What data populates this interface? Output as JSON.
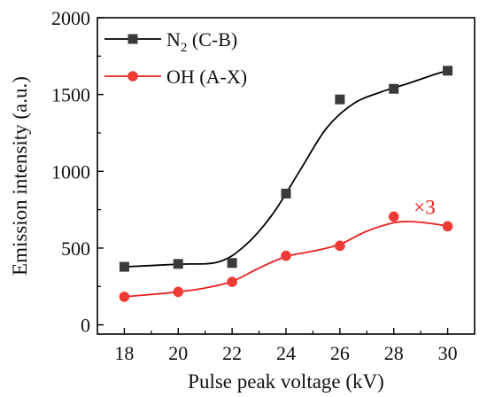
{
  "chart_data": {
    "type": "line",
    "xlabel": "Pulse peak voltage (kV)",
    "ylabel": "Emission intensity (a.u.)",
    "xlim": [
      17,
      31
    ],
    "ylim": [
      -60,
      2000
    ],
    "x_ticks": [
      18,
      20,
      22,
      24,
      26,
      28,
      30
    ],
    "y_ticks": [
      0,
      500,
      1000,
      1500,
      2000
    ],
    "x": [
      18,
      20,
      22,
      24,
      26,
      28,
      30
    ],
    "grid": false,
    "legend_position": "top-left",
    "series": [
      {
        "name_main": "N",
        "name_sub": "2",
        "name_tail": " (C-B)",
        "marker": "square",
        "color": "#000000",
        "marker_color": "#3a3a3a",
        "values": [
          378,
          397,
          403,
          855,
          1468,
          1537,
          1655
        ],
        "fit": [
          [
            18,
            378
          ],
          [
            20,
            395
          ],
          [
            21.5,
            410
          ],
          [
            22.5,
            520
          ],
          [
            23.5,
            720
          ],
          [
            24.5,
            1000
          ],
          [
            25.5,
            1280
          ],
          [
            26.5,
            1440
          ],
          [
            27.5,
            1515
          ],
          [
            28.5,
            1570
          ],
          [
            29.5,
            1630
          ],
          [
            30,
            1655
          ]
        ]
      },
      {
        "name_main": "OH (A-X)",
        "name_sub": "",
        "name_tail": "",
        "marker": "circle",
        "color": "#e8201e",
        "marker_color": "#f03a36",
        "values": [
          183,
          215,
          280,
          450,
          515,
          705,
          642
        ],
        "fit": [
          [
            18,
            183
          ],
          [
            19,
            198
          ],
          [
            20,
            215
          ],
          [
            21,
            240
          ],
          [
            22,
            283
          ],
          [
            23,
            370
          ],
          [
            24,
            445
          ],
          [
            25,
            480
          ],
          [
            26,
            525
          ],
          [
            27,
            610
          ],
          [
            28,
            665
          ],
          [
            28.6,
            672
          ],
          [
            29.3,
            662
          ],
          [
            30,
            643
          ]
        ]
      }
    ],
    "annotation": {
      "text": "×3",
      "color": "#e8201e",
      "x": 29.2,
      "y": 790
    }
  }
}
